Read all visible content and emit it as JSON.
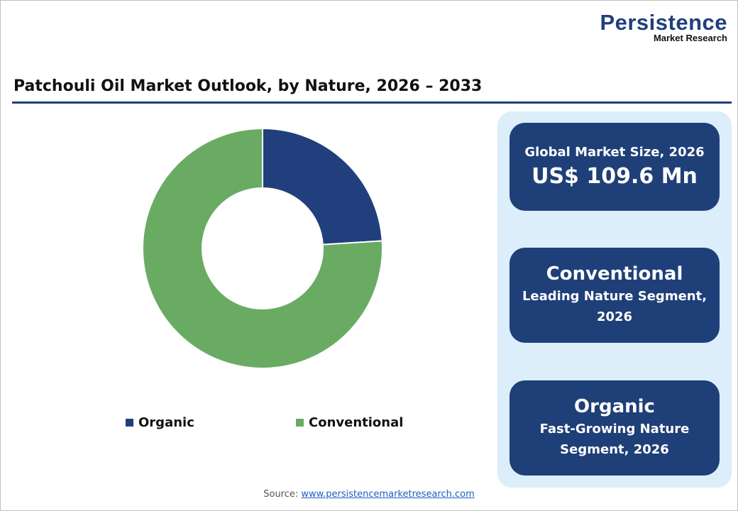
{
  "logo": {
    "line1": "Persistence",
    "line2": "Market Research"
  },
  "title": "Patchouli Oil Market Outlook, by Nature, 2026 – 2033",
  "chart_data": {
    "type": "pie",
    "subtype": "donut",
    "categories": [
      "Organic",
      "Conventional"
    ],
    "values": [
      24,
      76
    ],
    "colors": [
      "#213f7c",
      "#6aab64"
    ],
    "legend": "bottom"
  },
  "cards": [
    {
      "label": "Global Market Size, 2026",
      "value": "US$ 109.6 Mn"
    },
    {
      "value": "Conventional",
      "label": "Leading Nature Segment, 2026"
    },
    {
      "value": "Organic",
      "label": "Fast-Growing Nature Segment, 2026"
    }
  ],
  "source": {
    "label": "Source: ",
    "link": "www.persistencemarketresearch.com"
  }
}
